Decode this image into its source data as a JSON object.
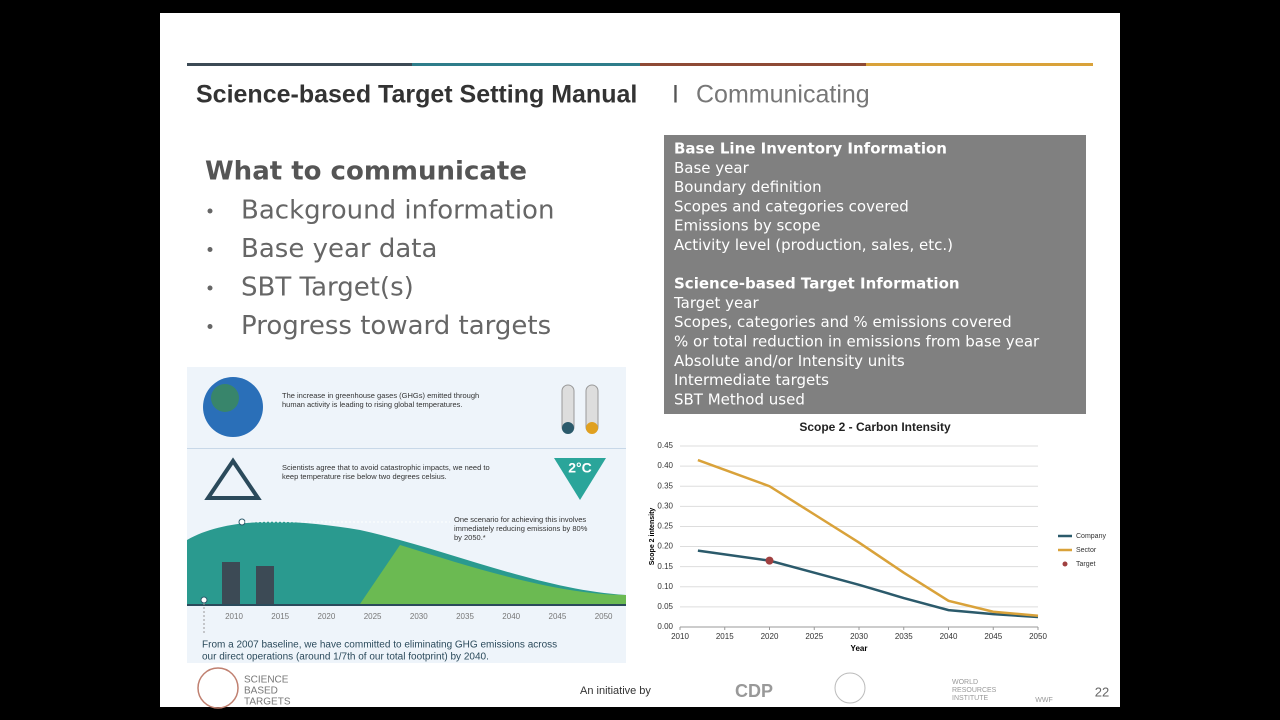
{
  "header": {
    "title": "Science-based Target Setting Manual",
    "separator": "I",
    "subtitle": "Communicating"
  },
  "body": {
    "heading": "What to communicate",
    "bullets": [
      "Background information",
      "Base year data",
      "SBT Target(s)",
      "Progress toward targets"
    ]
  },
  "info_box": {
    "sections": [
      {
        "heading": "Base Line Inventory Information",
        "items": [
          "Base year",
          "Boundary definition",
          "Scopes and categories covered",
          "Emissions by scope",
          "Activity level (production, sales, etc.)"
        ]
      },
      {
        "heading": "Science-based Target Information",
        "items": [
          "Target year",
          "Scopes, categories and % emissions covered",
          "% or total reduction in emissions from base year",
          "Absolute and/or Intensity units",
          "Intermediate targets",
          "SBT Method used"
        ]
      }
    ]
  },
  "infographic": {
    "text_1": [
      "The increase in greenhouse gases (GHGs) emitted through",
      "human activity is leading to rising global temperatures."
    ],
    "text_2": [
      "Scientists agree that to avoid catastrophic impacts, we need to",
      "keep temperature rise below two degrees celsius."
    ],
    "badge": "2°C",
    "text_3": [
      "One scenario for achieving this involves",
      "immediately reducing emissions by 80%",
      "by 2050.*"
    ],
    "years": [
      2010,
      2015,
      2020,
      2025,
      2030,
      2035,
      2040,
      2045,
      2050
    ],
    "caption": [
      "From a 2007 baseline, we have committed to eliminating GHG emissions across",
      "our direct operations (around 1/7th of our total footprint) by 2040."
    ]
  },
  "chart_data": {
    "type": "line",
    "title": "Scope 2 - Carbon Intensity",
    "x_label": "Year",
    "y_label": "Scope 2 intensity",
    "x": [
      2012,
      2020,
      2025,
      2030,
      2035,
      2040,
      2045,
      2050
    ],
    "series": [
      {
        "name": "Company",
        "color": "#2b5a6b",
        "values": [
          0.19,
          0.165,
          0.135,
          0.105,
          0.072,
          0.042,
          0.032,
          0.025
        ]
      },
      {
        "name": "Sector",
        "color": "#d9a23a",
        "values": [
          0.415,
          0.35,
          0.28,
          0.21,
          0.135,
          0.065,
          0.038,
          0.028
        ]
      },
      {
        "name": "Target",
        "color": "#a04040",
        "values": [
          null,
          0.165,
          null,
          null,
          null,
          null,
          null,
          null
        ]
      }
    ],
    "xlim": [
      2010,
      2050
    ],
    "xticks": [
      2010,
      2015,
      2020,
      2025,
      2030,
      2035,
      2040,
      2045,
      2050
    ],
    "ylim": [
      0,
      0.45
    ],
    "yticks": [
      {
        "value": 0,
        "label": "0.00"
      },
      0.05,
      {
        "value": 0.1,
        "label": "0.10"
      },
      0.15,
      {
        "value": 0.2,
        "label": "0.20"
      },
      0.25,
      {
        "value": 0.3,
        "label": "0.30"
      },
      0.35,
      {
        "value": 0.4,
        "label": "0.40"
      },
      0.45
    ],
    "grid": true,
    "legend": "right"
  },
  "footer": {
    "logo_text": [
      "SCIENCE",
      "BASED",
      "TARGETS"
    ],
    "initiative": "An initiative by",
    "partners": [
      "CDP",
      "WORLD",
      "RESOURCES",
      "INSTITUTE",
      "WWF"
    ],
    "page": 22
  }
}
